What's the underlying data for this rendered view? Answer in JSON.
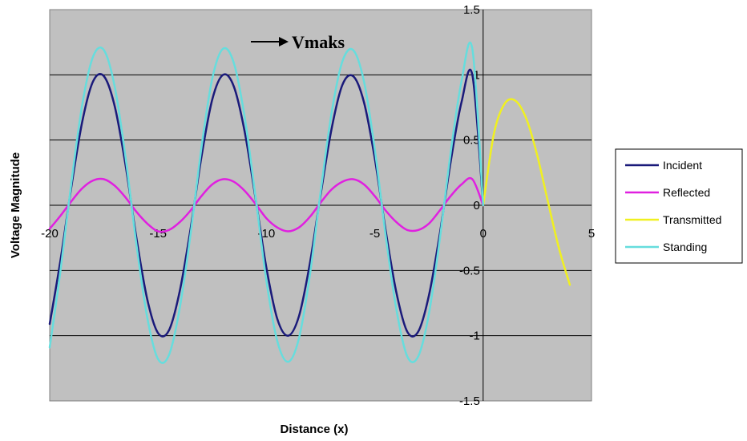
{
  "chart_data": {
    "type": "line",
    "title": "",
    "xlabel": "Distance (x)",
    "ylabel": "Voltage Magnitude",
    "xlim": [
      -20,
      5
    ],
    "ylim": [
      -1.5,
      1.5
    ],
    "x_ticks": [
      "-20",
      "-15",
      "-10",
      "-5",
      "0",
      "5"
    ],
    "y_ticks": [
      "1.5",
      "1",
      "0.5",
      "0",
      "-0.5",
      "-1",
      "-1.5"
    ],
    "grid": "horizontal",
    "plot_background": "#c0c0c0",
    "legend_position": "right",
    "annotation": "Vmaks",
    "series": [
      {
        "name": "Incident",
        "color": "#1a1a7a",
        "x": [
          -20,
          -19.5,
          -19,
          -18.5,
          -18,
          -17.5,
          -17,
          -16.5,
          -16,
          -15.5,
          -15,
          -14.5,
          -14,
          -13.5,
          -13,
          -12.5,
          -12,
          -11.5,
          -11,
          -10.5,
          -10,
          -9.5,
          -9,
          -8.5,
          -8,
          -7.5,
          -7,
          -6.5,
          -6,
          -5.5,
          -5,
          -4.5,
          -4,
          -3.5,
          -3,
          -2.5,
          -2,
          -1.5,
          -1,
          -0.5,
          0
        ],
        "y": [
          -0.91,
          -0.42,
          0.14,
          0.64,
          0.95,
          0.99,
          0.76,
          0.31,
          -0.25,
          -0.72,
          -0.98,
          -0.96,
          -0.66,
          -0.18,
          0.37,
          0.81,
          1.0,
          0.91,
          0.56,
          0.05,
          -0.48,
          -0.87,
          -1.0,
          -0.85,
          -0.45,
          0.08,
          0.58,
          0.92,
          0.99,
          0.79,
          0.36,
          -0.19,
          -0.67,
          -0.97,
          -0.97,
          -0.69,
          -0.22,
          0.33,
          0.79,
          1.0,
          0.0
        ]
      },
      {
        "name": "Reflected",
        "color": "#e020e0",
        "x": [
          -20,
          -19.5,
          -19,
          -18.5,
          -18,
          -17.5,
          -17,
          -16.5,
          -16,
          -15.5,
          -15,
          -14.5,
          -14,
          -13.5,
          -13,
          -12.5,
          -12,
          -11.5,
          -11,
          -10.5,
          -10,
          -9.5,
          -9,
          -8.5,
          -8,
          -7.5,
          -7,
          -6.5,
          -6,
          -5.5,
          -5,
          -4.5,
          -4,
          -3.5,
          -3,
          -2.5,
          -2,
          -1.5,
          -1,
          -0.5,
          0
        ],
        "y": [
          -0.18,
          -0.08,
          0.03,
          0.13,
          0.19,
          0.2,
          0.15,
          0.06,
          -0.05,
          -0.14,
          -0.2,
          -0.19,
          -0.13,
          -0.04,
          0.07,
          0.16,
          0.2,
          0.18,
          0.11,
          0.01,
          -0.1,
          -0.17,
          -0.2,
          -0.17,
          -0.09,
          0.02,
          0.12,
          0.18,
          0.2,
          0.16,
          0.07,
          -0.04,
          -0.13,
          -0.19,
          -0.19,
          -0.14,
          -0.04,
          0.07,
          0.16,
          0.2,
          0.0
        ]
      },
      {
        "name": "Transmitted",
        "color": "#f0f020",
        "x": [
          0,
          0.5,
          1,
          1.5,
          2,
          2.5,
          3,
          3.5,
          4
        ],
        "y": [
          0.0,
          0.55,
          0.78,
          0.8,
          0.66,
          0.38,
          0.02,
          -0.33,
          -0.61
        ]
      },
      {
        "name": "Standing",
        "color": "#66dddd",
        "x": [
          -20,
          -19.5,
          -19,
          -18.5,
          -18,
          -17.5,
          -17,
          -16.5,
          -16,
          -15.5,
          -15,
          -14.5,
          -14,
          -13.5,
          -13,
          -12.5,
          -12,
          -11.5,
          -11,
          -10.5,
          -10,
          -9.5,
          -9,
          -8.5,
          -8,
          -7.5,
          -7,
          -6.5,
          -6,
          -5.5,
          -5,
          -4.5,
          -4,
          -3.5,
          -3,
          -2.5,
          -2,
          -1.5,
          -1,
          -0.5,
          0
        ],
        "y": [
          -1.09,
          -0.5,
          0.17,
          0.77,
          1.14,
          1.19,
          0.91,
          0.37,
          -0.3,
          -0.86,
          -1.18,
          -1.15,
          -0.79,
          -0.22,
          0.44,
          0.97,
          1.2,
          1.09,
          0.67,
          0.06,
          -0.58,
          -1.04,
          -1.2,
          -1.02,
          -0.54,
          0.1,
          0.7,
          1.1,
          1.19,
          0.95,
          0.43,
          -0.23,
          -0.8,
          -1.16,
          -1.16,
          -0.83,
          -0.26,
          0.4,
          0.95,
          1.2,
          0.0
        ]
      }
    ]
  }
}
